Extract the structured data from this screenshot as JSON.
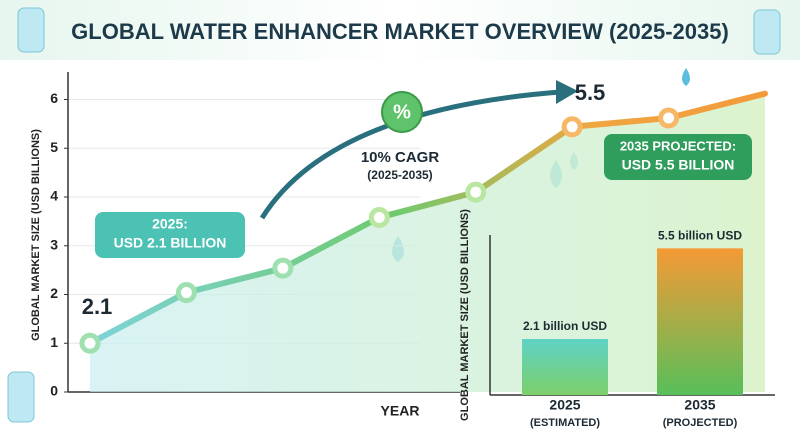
{
  "chart_data": [
    {
      "type": "line",
      "title": "GLOBAL WATER ENHANCER MARKET OVERVIEW (2025-2035)",
      "y_label": "GLOBAL MARKET SIZE (USD BILLIONS)",
      "x_label": "YEAR",
      "categories": [
        null,
        null,
        null,
        null,
        null,
        null,
        null,
        null
      ],
      "values": [
        1.0,
        2.04,
        2.54,
        3.58,
        4.1,
        5.44,
        5.62,
        6.12
      ],
      "color": "#3fb58a",
      "ylim": [
        0,
        6.4
      ],
      "yticks": [
        0,
        1,
        2,
        3,
        4,
        5,
        6
      ],
      "grid": true,
      "annotations": [
        "2.1",
        "2025:",
        "USD 2.1 BILLION",
        "%",
        "10% CAGR",
        "(2025-2035)",
        "5.5",
        "2035 PROJECTED:",
        "USD 5.5 BILLION"
      ]
    },
    {
      "type": "bar",
      "y_label": "GLOBAL MARKET SIZE (USD BILLIONS)",
      "categories": [
        "2025",
        "2035"
      ],
      "sublabels": [
        "(ESTIMATED)",
        "(PROJECTED)"
      ],
      "values": [
        2.1,
        5.5
      ],
      "value_labels": [
        "2.1 billion USD",
        "5.5 billion USD"
      ],
      "ylim": [
        0,
        6
      ]
    }
  ]
}
